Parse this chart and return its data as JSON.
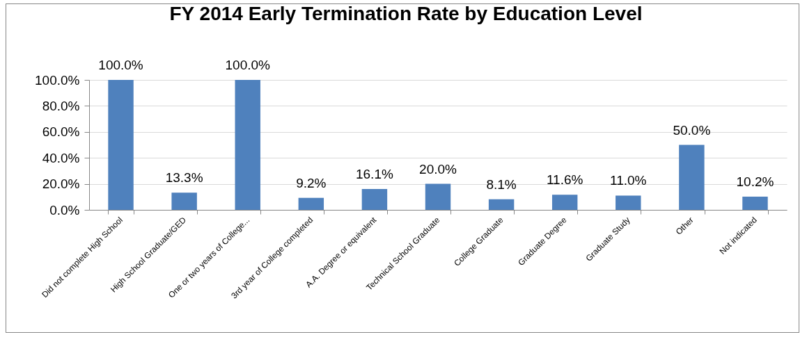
{
  "chart_data": {
    "type": "bar",
    "title": "FY 2014 Early Termination Rate by Education Level",
    "categories": [
      "Did not complete High School",
      "High School Graduate/GED",
      "One or two years of College...",
      "3rd year of College completed",
      "A.A. Degree or equivalent",
      "Technical School Graduate",
      "College Graduate",
      "Graduate Degree",
      "Graduate Study",
      "Other",
      "Not indicated"
    ],
    "values": [
      100,
      13.3,
      100,
      9.2,
      16.1,
      20.0,
      8.1,
      11.6,
      11.0,
      50.0,
      10.2
    ],
    "value_labels": [
      "100.0%",
      "13.3%",
      "100.0%",
      "9.2%",
      "16.1%",
      "20.0%",
      "8.1%",
      "11.6%",
      "11.0%",
      "50.0%",
      "10.2%"
    ],
    "color": "#4f81bd",
    "ylim": [
      0,
      100
    ],
    "yticks": [
      {
        "value": 0,
        "label": "0.0%"
      },
      {
        "value": 20,
        "label": "20.0%"
      },
      {
        "value": 40,
        "label": "40.0%"
      },
      {
        "value": 60,
        "label": "60.0%"
      },
      {
        "value": 80,
        "label": "80.0%"
      },
      {
        "value": 100,
        "label": "100.0%"
      }
    ],
    "grid": "y"
  }
}
